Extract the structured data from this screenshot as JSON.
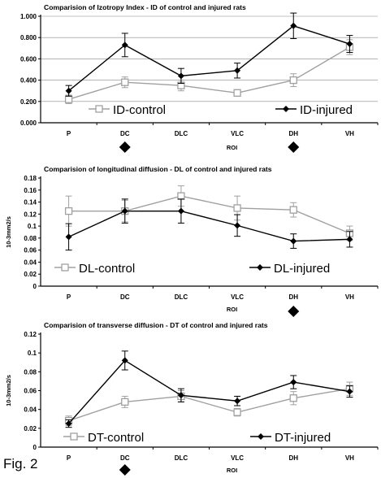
{
  "figure_label": "Fig. 2",
  "colors": {
    "control": "#a0a0a0",
    "injured": "#000000",
    "grid": "#888888"
  },
  "chart_data": [
    {
      "type": "line",
      "title": "Comparision of Izotropy Index - ID of control  and injured rats",
      "xlabel": "ROI",
      "ylabel": "",
      "categories": [
        "P",
        "DC",
        "DLC",
        "VLC",
        "DH",
        "VH"
      ],
      "ylim": [
        0,
        1
      ],
      "yticks": [
        "0.000",
        "0.200",
        "0.400",
        "0.600",
        "0.800",
        "1.000"
      ],
      "grid": true,
      "legend_position": "bottom-inside",
      "markers_below_axis": [
        "DC",
        "DH"
      ],
      "series": [
        {
          "name": "ID-control",
          "marker": "open-square",
          "values": [
            0.22,
            0.38,
            0.35,
            0.28,
            0.4,
            0.71
          ],
          "errors": [
            0.04,
            0.05,
            0.05,
            0.03,
            0.06,
            0.07
          ]
        },
        {
          "name": "ID-injured",
          "marker": "filled-diamond",
          "values": [
            0.3,
            0.73,
            0.44,
            0.49,
            0.91,
            0.74
          ],
          "errors": [
            0.05,
            0.11,
            0.07,
            0.07,
            0.12,
            0.08
          ]
        }
      ]
    },
    {
      "type": "line",
      "title": "Comparision of longitudinal diffusion - DL of control and injured rats",
      "xlabel": "ROI",
      "ylabel": "10-3mm2/s",
      "categories": [
        "P",
        "DC",
        "DLC",
        "VLC",
        "DH",
        "VH"
      ],
      "ylim": [
        0,
        0.18
      ],
      "yticks": [
        "0",
        "0.02",
        "0.04",
        "0.06",
        "0.08",
        "0.1",
        "0.12",
        "0.14",
        "0.16",
        "0.18"
      ],
      "grid": false,
      "legend_position": "bottom-inside",
      "markers_below_axis": [
        "DH"
      ],
      "series": [
        {
          "name": "DL-control",
          "marker": "open-square",
          "values": [
            0.125,
            0.125,
            0.15,
            0.13,
            0.127,
            0.088
          ],
          "errors": [
            0.025,
            0.018,
            0.017,
            0.02,
            0.012,
            0.012
          ]
        },
        {
          "name": "DL-injured",
          "marker": "filled-diamond",
          "values": [
            0.082,
            0.125,
            0.125,
            0.101,
            0.075,
            0.078
          ],
          "errors": [
            0.022,
            0.02,
            0.02,
            0.018,
            0.012,
            0.013
          ]
        }
      ]
    },
    {
      "type": "line",
      "title": "Comparision of transverse diffusion - DT of control and injured rats",
      "xlabel": "ROI",
      "ylabel": "10-3mm2/s",
      "categories": [
        "P",
        "DC",
        "DLC",
        "VLC",
        "DH",
        "VH"
      ],
      "ylim": [
        0,
        0.12
      ],
      "yticks": [
        "0",
        "0.02",
        "0.04",
        "0.06",
        "0.08",
        "0.1",
        "0.12"
      ],
      "grid": false,
      "legend_position": "bottom-inside",
      "markers_below_axis": [
        "DC"
      ],
      "series": [
        {
          "name": "DT-control",
          "marker": "open-square",
          "values": [
            0.028,
            0.048,
            0.054,
            0.037,
            0.052,
            0.062
          ],
          "errors": [
            0.005,
            0.006,
            0.006,
            0.004,
            0.007,
            0.007
          ]
        },
        {
          "name": "DT-injured",
          "marker": "filled-diamond",
          "values": [
            0.025,
            0.092,
            0.055,
            0.049,
            0.069,
            0.059
          ],
          "errors": [
            0.004,
            0.01,
            0.007,
            0.005,
            0.007,
            0.006
          ]
        }
      ]
    }
  ]
}
